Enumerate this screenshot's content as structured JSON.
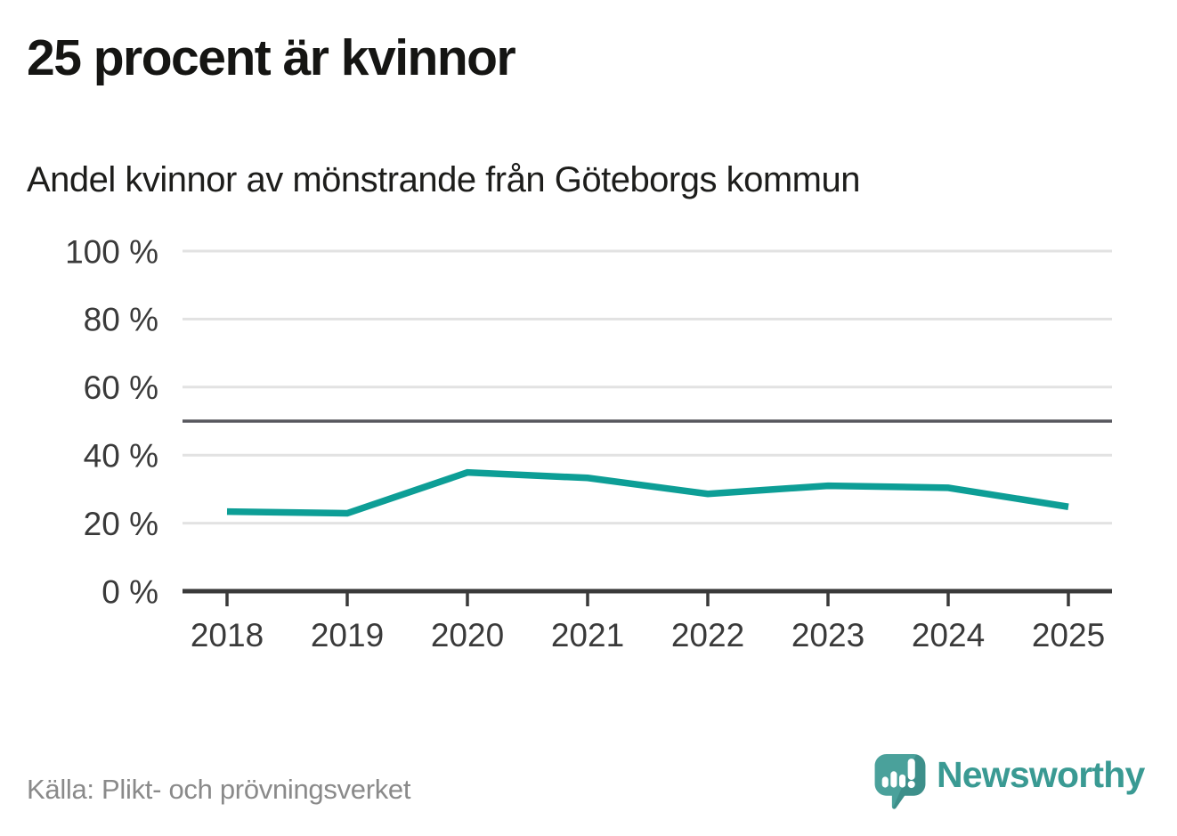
{
  "chart_data": {
    "type": "line",
    "title": "25 procent är kvinnor",
    "subtitle": "Andel kvinnor av mönstrande från Göteborgs kommun",
    "x": [
      2018,
      2019,
      2020,
      2021,
      2022,
      2023,
      2024,
      2025
    ],
    "series": [
      {
        "name": "Andel kvinnor",
        "values": [
          23.4,
          22.9,
          34.9,
          33.3,
          28.6,
          31.0,
          30.4,
          24.8
        ]
      }
    ],
    "xlabel": "",
    "ylabel": "",
    "ylim": [
      0,
      100
    ],
    "yticks": [
      0,
      20,
      40,
      60,
      80,
      100
    ],
    "ytick_suffix": " %",
    "reference_line_y": 50,
    "grid": true,
    "legend": "none",
    "colors": {
      "line": "#0d9e96",
      "grid": "#e2e2e2",
      "axis": "#3a3a3a",
      "reference_line": "#57575d",
      "tick_label": "#3a3a3a"
    }
  },
  "footer": {
    "source": "Källa: Plikt- och prövningsverket",
    "logo_text": "Newsworthy"
  },
  "icons": {
    "logo_icon": "newsworthy-speech-bubble-barchart-icon"
  },
  "brand": {
    "teal": "#3a9a93",
    "logo_bubble": "#4aa19b"
  }
}
